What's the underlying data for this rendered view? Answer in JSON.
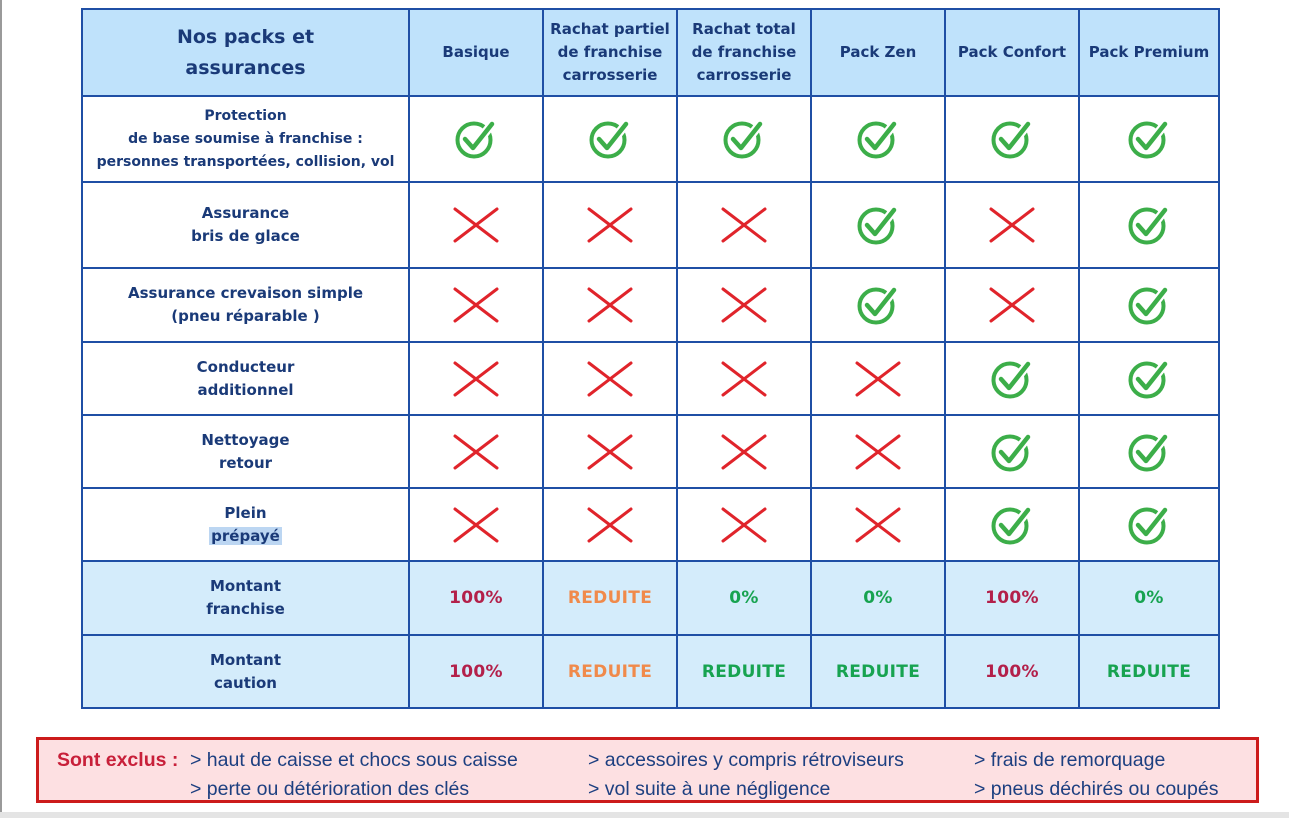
{
  "table": {
    "corner": [
      "Nos packs et",
      "assurances"
    ],
    "columns": [
      [
        "Basique"
      ],
      [
        "Rachat partiel",
        "de franchise",
        "carrosserie"
      ],
      [
        "Rachat total",
        "de franchise",
        "carrosserie"
      ],
      [
        "Pack Zen"
      ],
      [
        "Pack Confort"
      ],
      [
        "Pack Premium"
      ]
    ],
    "rows": [
      {
        "label": [
          "Protection",
          "de base soumise à franchise :",
          "personnes transportées, collision, vol"
        ],
        "included": [
          true,
          true,
          true,
          true,
          true,
          true
        ]
      },
      {
        "label": [
          "Assurance",
          "bris de glace"
        ],
        "included": [
          false,
          false,
          false,
          true,
          false,
          true
        ]
      },
      {
        "label": [
          "Assurance crevaison simple",
          "(pneu réparable )"
        ],
        "included": [
          false,
          false,
          false,
          true,
          false,
          true
        ]
      },
      {
        "label": [
          "Conducteur",
          "additionnel"
        ],
        "included": [
          false,
          false,
          false,
          false,
          true,
          true
        ]
      },
      {
        "label": [
          "Nettoyage",
          "retour"
        ],
        "included": [
          false,
          false,
          false,
          false,
          true,
          true
        ]
      },
      {
        "label": [
          "Plein",
          "prépayé"
        ],
        "included": [
          false,
          false,
          false,
          false,
          true,
          true
        ]
      }
    ],
    "value_rows": [
      {
        "label": [
          "Montant",
          "franchise"
        ],
        "values": [
          "100%",
          "REDUITE",
          "0%",
          "0%",
          "100%",
          "0%"
        ],
        "tones": [
          "red",
          "orange",
          "green",
          "green",
          "red",
          "green"
        ]
      },
      {
        "label": [
          "Montant",
          "caution"
        ],
        "values": [
          "100%",
          "REDUITE",
          "REDUITE",
          "REDUITE",
          "100%",
          "REDUITE"
        ],
        "tones": [
          "red",
          "orange",
          "green",
          "green",
          "red",
          "green"
        ]
      }
    ]
  },
  "icons": {
    "included": "check-circle-icon",
    "excluded": "cross-icon"
  },
  "colors": {
    "check": "#3cae49",
    "cross": "#e0242b",
    "header_bg": "#bfe2fb",
    "border": "#1f4fa5",
    "value_red": "#b3204a",
    "value_orange": "#f08a4b",
    "value_green": "#17a350"
  },
  "exclusions": {
    "title": "Sont exclus :",
    "items": [
      "> haut de caisse et chocs sous caisse",
      "> accessoires y compris rétroviseurs",
      "> frais de remorquage",
      "> perte ou détérioration des clés",
      "> vol suite à une négligence",
      "> pneus déchirés ou coupés"
    ]
  }
}
